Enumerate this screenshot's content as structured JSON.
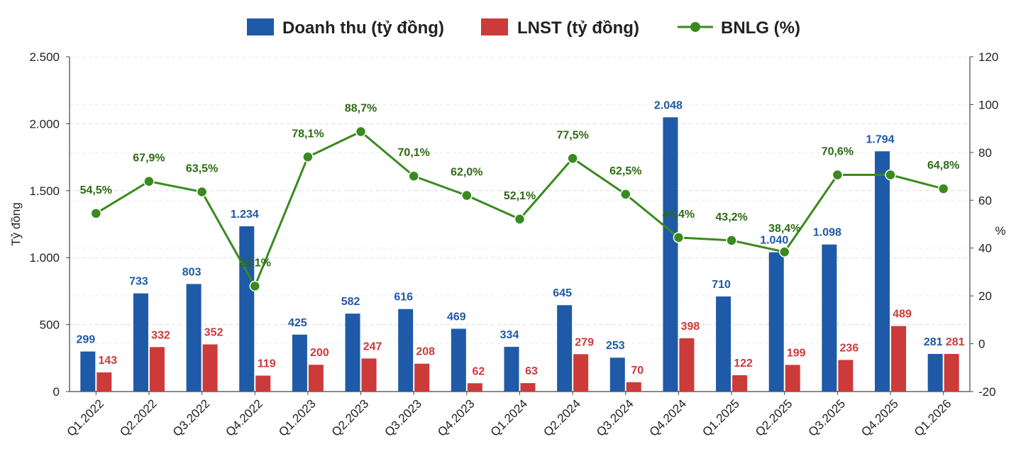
{
  "chart_data": {
    "type": "bar",
    "title": "",
    "categories": [
      "Q1.2022",
      "Q2.2022",
      "Q3.2022",
      "Q4.2022",
      "Q1.2023",
      "Q2.2023",
      "Q3.2023",
      "Q4.2023",
      "Q1.2024",
      "Q2.2024",
      "Q3.2024",
      "Q4.2024",
      "Q1.2025",
      "Q2.2025",
      "Q3.2025",
      "Q4.2025",
      "Q1.2026"
    ],
    "series": [
      {
        "name": "Doanh thu (tỷ đồng)",
        "kind": "bar",
        "axis": "left",
        "color": "#1f5aa8",
        "values": [
          299,
          733,
          803,
          1234,
          425,
          582,
          616,
          469,
          334,
          645,
          253,
          2048,
          710,
          1040,
          1098,
          1794,
          281
        ],
        "labels": [
          "299",
          "733",
          "803",
          "1.234",
          "425",
          "582",
          "616",
          "469",
          "334",
          "645",
          "253",
          "2.048",
          "710",
          "1.040",
          "1.098",
          "1.794",
          "281"
        ]
      },
      {
        "name": "LNST (tỷ đồng)",
        "kind": "bar",
        "axis": "left",
        "color": "#cc3a3a",
        "values": [
          143,
          332,
          352,
          119,
          200,
          247,
          208,
          62,
          63,
          279,
          70,
          398,
          122,
          199,
          236,
          489,
          281
        ],
        "labels": [
          "143",
          "332",
          "352",
          "119",
          "200",
          "247",
          "208",
          "62",
          "63",
          "279",
          "70",
          "398",
          "122",
          "199",
          "236",
          "489",
          "281"
        ]
      },
      {
        "name": "BNLG (%)",
        "kind": "line",
        "axis": "right",
        "color": "#3a8a1f",
        "label_color": "#2d6b14",
        "values": [
          54.5,
          67.9,
          63.5,
          24.1,
          78.1,
          88.7,
          70.1,
          62.0,
          52.1,
          77.5,
          62.5,
          44.4,
          43.2,
          38.4,
          70.6,
          70.6,
          64.8
        ],
        "labels": [
          "54,5%",
          "67,9%",
          "63,5%",
          "24,1%",
          "78,1%",
          "88,7%",
          "70,1%",
          "62,0%",
          "52,1%",
          "77,5%",
          "62,5%",
          "44,4%",
          "43,2%",
          "38,4%",
          "70,6%",
          "",
          "64,8%"
        ]
      }
    ],
    "left_axis": {
      "title": "Tỷ đồng",
      "ylim": [
        0,
        2500
      ],
      "ticks": [
        0,
        500,
        1000,
        1500,
        2000,
        2500
      ],
      "tick_labels": [
        "0",
        "500",
        "1.000",
        "1.500",
        "2.000",
        "2.500"
      ]
    },
    "right_axis": {
      "title": "%",
      "ylim": [
        -20,
        120
      ],
      "ticks": [
        -20,
        0,
        20,
        40,
        60,
        80,
        100,
        120
      ],
      "tick_labels": [
        "-20",
        "0",
        "20",
        "40",
        "60",
        "80",
        "100",
        "120"
      ]
    },
    "grid": true,
    "legend_position": "top-center"
  }
}
